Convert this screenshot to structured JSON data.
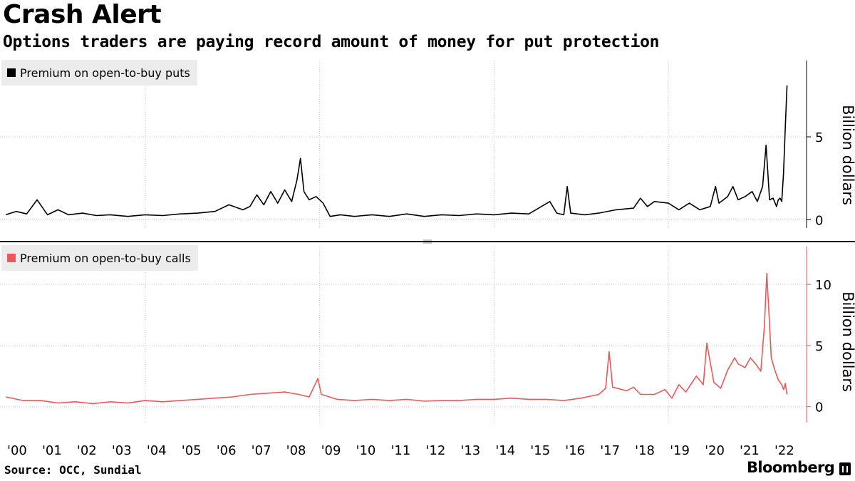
{
  "header": {
    "title": "Crash Alert",
    "subtitle": "Options traders are paying record amount of money for put protection"
  },
  "footer": {
    "source": "Source: OCC, Sundial",
    "brand": "Bloomberg"
  },
  "colors": {
    "puts": "#000000",
    "calls": "#e8595a",
    "grid": "#c8c8c8",
    "legend_bg": "#ececec"
  },
  "chart_data": [
    {
      "type": "line",
      "legend": "Premium on open-to-buy puts",
      "ylabel": "Billion dollars",
      "ylim": [
        -0.5,
        9.6
      ],
      "yticks": [
        0,
        5
      ],
      "xlim": [
        2000.0,
        2022.45
      ],
      "series": [
        {
          "name": "Premium on open-to-buy puts",
          "points": [
            [
              2000.0,
              0.3
            ],
            [
              2000.3,
              0.5
            ],
            [
              2000.6,
              0.35
            ],
            [
              2000.9,
              1.2
            ],
            [
              2001.2,
              0.3
            ],
            [
              2001.5,
              0.6
            ],
            [
              2001.8,
              0.3
            ],
            [
              2002.2,
              0.4
            ],
            [
              2002.6,
              0.25
            ],
            [
              2003.0,
              0.3
            ],
            [
              2003.5,
              0.2
            ],
            [
              2004.0,
              0.3
            ],
            [
              2004.5,
              0.25
            ],
            [
              2005.0,
              0.35
            ],
            [
              2005.5,
              0.4
            ],
            [
              2006.0,
              0.5
            ],
            [
              2006.4,
              0.9
            ],
            [
              2006.8,
              0.6
            ],
            [
              2007.0,
              0.8
            ],
            [
              2007.2,
              1.5
            ],
            [
              2007.4,
              0.9
            ],
            [
              2007.6,
              1.7
            ],
            [
              2007.8,
              1.0
            ],
            [
              2008.0,
              1.8
            ],
            [
              2008.2,
              1.1
            ],
            [
              2008.35,
              2.4
            ],
            [
              2008.45,
              3.7
            ],
            [
              2008.55,
              1.7
            ],
            [
              2008.7,
              1.2
            ],
            [
              2008.9,
              1.4
            ],
            [
              2009.1,
              1.0
            ],
            [
              2009.3,
              0.2
            ],
            [
              2009.6,
              0.3
            ],
            [
              2010.0,
              0.2
            ],
            [
              2010.5,
              0.3
            ],
            [
              2011.0,
              0.2
            ],
            [
              2011.5,
              0.35
            ],
            [
              2012.0,
              0.2
            ],
            [
              2012.5,
              0.3
            ],
            [
              2013.0,
              0.25
            ],
            [
              2013.5,
              0.35
            ],
            [
              2014.0,
              0.3
            ],
            [
              2014.5,
              0.4
            ],
            [
              2015.0,
              0.35
            ],
            [
              2015.6,
              1.1
            ],
            [
              2015.8,
              0.4
            ],
            [
              2016.0,
              0.3
            ],
            [
              2016.1,
              2.0
            ],
            [
              2016.2,
              0.4
            ],
            [
              2016.6,
              0.3
            ],
            [
              2017.0,
              0.4
            ],
            [
              2017.5,
              0.6
            ],
            [
              2018.0,
              0.7
            ],
            [
              2018.2,
              1.3
            ],
            [
              2018.4,
              0.8
            ],
            [
              2018.6,
              1.1
            ],
            [
              2019.0,
              1.0
            ],
            [
              2019.3,
              0.6
            ],
            [
              2019.6,
              1.0
            ],
            [
              2019.9,
              0.6
            ],
            [
              2020.2,
              0.8
            ],
            [
              2020.35,
              2.0
            ],
            [
              2020.45,
              1.0
            ],
            [
              2020.7,
              1.4
            ],
            [
              2020.85,
              2.0
            ],
            [
              2021.0,
              1.2
            ],
            [
              2021.2,
              1.4
            ],
            [
              2021.4,
              1.7
            ],
            [
              2021.55,
              1.1
            ],
            [
              2021.7,
              2.0
            ],
            [
              2021.8,
              4.5
            ],
            [
              2021.9,
              1.2
            ],
            [
              2022.0,
              1.3
            ],
            [
              2022.1,
              0.8
            ],
            [
              2022.15,
              1.2
            ],
            [
              2022.2,
              1.3
            ],
            [
              2022.25,
              1.1
            ],
            [
              2022.3,
              2.8
            ],
            [
              2022.35,
              5.5
            ],
            [
              2022.4,
              8.1
            ]
          ]
        }
      ]
    },
    {
      "type": "line",
      "legend": "Premium on open-to-buy calls",
      "ylabel": "Billion dollars",
      "ylim": [
        -1.3,
        13.1
      ],
      "yticks": [
        0,
        5,
        10
      ],
      "xlim": [
        2000.0,
        2022.45
      ],
      "x_tick_labels": [
        "'00",
        "'01",
        "'02",
        "'03",
        "'04",
        "'05",
        "'06",
        "'07",
        "'08",
        "'09",
        "'10",
        "'11",
        "'12",
        "'13",
        "'14",
        "'15",
        "'16",
        "'17",
        "'18",
        "'19",
        "'20",
        "'21",
        "'22"
      ],
      "series": [
        {
          "name": "Premium on open-to-buy calls",
          "points": [
            [
              2000.0,
              0.8
            ],
            [
              2000.5,
              0.5
            ],
            [
              2001.0,
              0.5
            ],
            [
              2001.5,
              0.3
            ],
            [
              2002.0,
              0.4
            ],
            [
              2002.5,
              0.25
            ],
            [
              2003.0,
              0.4
            ],
            [
              2003.5,
              0.3
            ],
            [
              2004.0,
              0.5
            ],
            [
              2004.5,
              0.4
            ],
            [
              2005.0,
              0.5
            ],
            [
              2005.5,
              0.6
            ],
            [
              2006.0,
              0.7
            ],
            [
              2006.5,
              0.8
            ],
            [
              2007.0,
              1.0
            ],
            [
              2007.5,
              1.1
            ],
            [
              2008.0,
              1.2
            ],
            [
              2008.4,
              1.0
            ],
            [
              2008.7,
              0.8
            ],
            [
              2008.95,
              2.3
            ],
            [
              2009.05,
              1.0
            ],
            [
              2009.5,
              0.6
            ],
            [
              2010.0,
              0.5
            ],
            [
              2010.5,
              0.6
            ],
            [
              2011.0,
              0.5
            ],
            [
              2011.5,
              0.6
            ],
            [
              2012.0,
              0.45
            ],
            [
              2012.5,
              0.5
            ],
            [
              2013.0,
              0.5
            ],
            [
              2013.5,
              0.6
            ],
            [
              2014.0,
              0.6
            ],
            [
              2014.5,
              0.7
            ],
            [
              2015.0,
              0.6
            ],
            [
              2015.5,
              0.6
            ],
            [
              2016.0,
              0.5
            ],
            [
              2016.5,
              0.7
            ],
            [
              2017.0,
              1.0
            ],
            [
              2017.2,
              1.5
            ],
            [
              2017.3,
              4.5
            ],
            [
              2017.4,
              1.6
            ],
            [
              2017.8,
              1.3
            ],
            [
              2018.0,
              1.6
            ],
            [
              2018.2,
              1.0
            ],
            [
              2018.6,
              1.0
            ],
            [
              2018.9,
              1.4
            ],
            [
              2019.1,
              0.7
            ],
            [
              2019.3,
              1.8
            ],
            [
              2019.5,
              1.2
            ],
            [
              2019.8,
              2.5
            ],
            [
              2020.0,
              1.8
            ],
            [
              2020.1,
              5.2
            ],
            [
              2020.3,
              2.0
            ],
            [
              2020.5,
              1.5
            ],
            [
              2020.7,
              3.0
            ],
            [
              2020.9,
              4.0
            ],
            [
              2021.0,
              3.5
            ],
            [
              2021.2,
              3.2
            ],
            [
              2021.35,
              4.0
            ],
            [
              2021.5,
              3.5
            ],
            [
              2021.65,
              2.9
            ],
            [
              2021.75,
              6.5
            ],
            [
              2021.82,
              10.9
            ],
            [
              2021.88,
              7.8
            ],
            [
              2021.95,
              4.0
            ],
            [
              2022.05,
              3.0
            ],
            [
              2022.15,
              2.2
            ],
            [
              2022.25,
              1.8
            ],
            [
              2022.3,
              1.4
            ],
            [
              2022.35,
              1.9
            ],
            [
              2022.4,
              1.0
            ]
          ]
        }
      ]
    }
  ]
}
